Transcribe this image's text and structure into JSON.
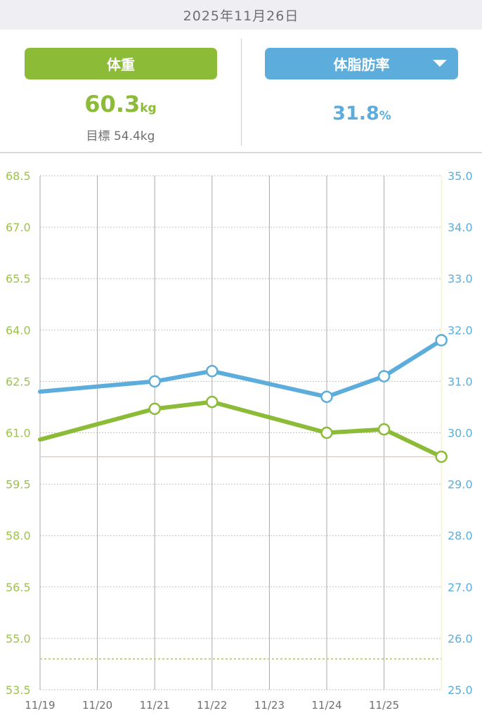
{
  "header": {
    "date": "2025年11月26日"
  },
  "weight_panel": {
    "label": "体重",
    "value": "60.3",
    "unit": "kg",
    "target_label": "目標",
    "target_value": "54.4kg"
  },
  "fat_panel": {
    "label": "体脂肪率",
    "value": "31.8",
    "unit": "%",
    "dropdown_icon": "caret-down-icon"
  },
  "colors": {
    "weight": "#8cbb37",
    "fat": "#5daddc",
    "target_line": "#f4c49a",
    "goal_line": "#b9d967",
    "grid": "#c2c2c2",
    "axis_left_text": "#9cc34b",
    "axis_right_text": "#5daddc"
  },
  "chart_data": {
    "type": "line",
    "categories": [
      "11/19",
      "11/20",
      "11/21",
      "11/22",
      "11/23",
      "11/24",
      "11/25",
      "11/26"
    ],
    "x_tick_labels": [
      "11/19",
      "11/20",
      "11/21",
      "11/22",
      "11/23",
      "11/24",
      "11/25"
    ],
    "left_axis": {
      "ylim": [
        53.5,
        68.5
      ],
      "ticks": [
        "68.5",
        "67.0",
        "65.5",
        "64.0",
        "62.5",
        "61.0",
        "59.5",
        "58.0",
        "56.5",
        "55.0",
        "53.5"
      ]
    },
    "right_axis": {
      "ylim": [
        25.0,
        35.0
      ],
      "ticks": [
        "35.0",
        "34.0",
        "33.0",
        "32.0",
        "31.0",
        "30.0",
        "29.0",
        "28.0",
        "27.0",
        "26.0",
        "25.0"
      ]
    },
    "series": [
      {
        "axis": "left",
        "values": [
          60.8,
          null,
          61.7,
          61.9,
          null,
          61.0,
          61.1,
          60.3
        ],
        "markers": [
          false,
          null,
          true,
          true,
          null,
          true,
          true,
          true
        ]
      },
      {
        "axis": "right",
        "values": [
          30.8,
          null,
          31.0,
          31.2,
          null,
          30.7,
          31.1,
          31.8
        ],
        "markers": [
          false,
          null,
          true,
          true,
          null,
          true,
          true,
          true
        ]
      }
    ],
    "reference_lines": [
      {
        "axis": "left",
        "value": 60.3,
        "style": "solid"
      },
      {
        "axis": "left",
        "value": 54.4,
        "style": "dotted"
      }
    ],
    "grid": true
  }
}
